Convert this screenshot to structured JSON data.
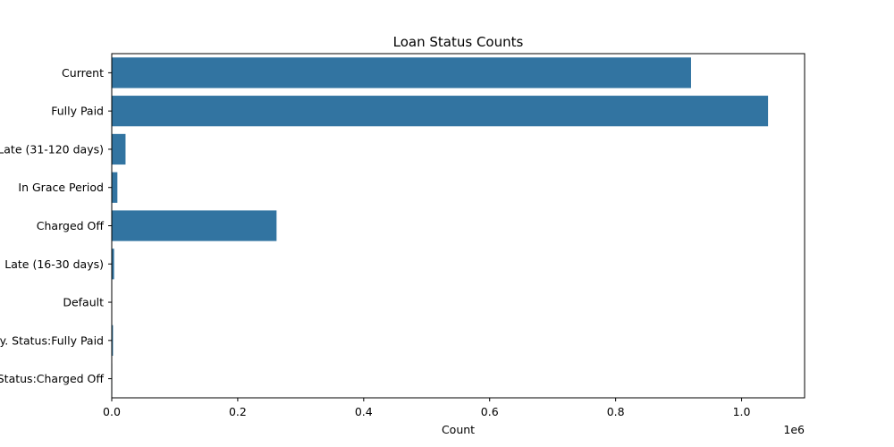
{
  "chart_data": {
    "type": "bar",
    "orientation": "horizontal",
    "title": "Loan Status Counts",
    "xlabel": "Count",
    "ylabel": "",
    "categories": [
      "Current",
      "Fully Paid",
      "Late (31-120 days)",
      "In Grace Period",
      "Charged Off",
      "Late (16-30 days)",
      "Default",
      "Does not meet the credit policy. Status:Fully Paid",
      "Does not meet the credit policy. Status:Charged Off"
    ],
    "values": [
      919695,
      1041952,
      21897,
      8952,
      261655,
      3737,
      29,
      1988,
      761
    ],
    "xlim": [
      0,
      1100000
    ],
    "xticks": [
      0,
      200000,
      400000,
      600000,
      800000,
      1000000
    ],
    "xtick_labels": [
      "0.0",
      "0.2",
      "0.4",
      "0.6",
      "0.8",
      "1.0"
    ],
    "offset_text": "1e6",
    "bar_color": "#3274a1",
    "grid": false,
    "legend": "none"
  }
}
